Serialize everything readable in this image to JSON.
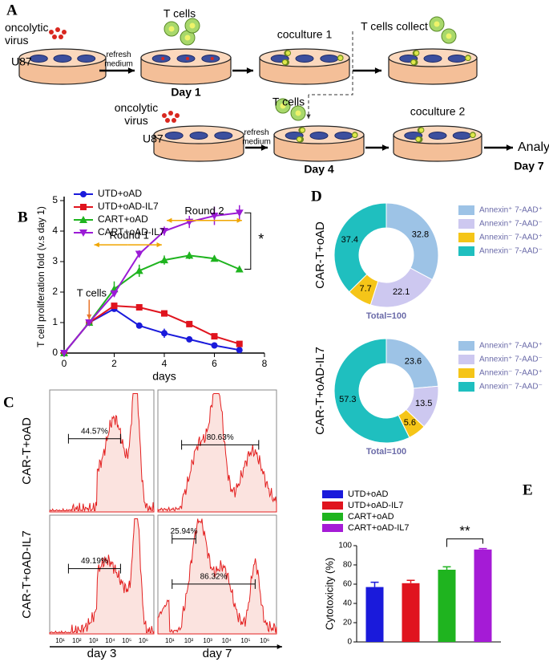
{
  "diagram": {
    "panel": "A",
    "labels": [
      "oncolytic virus",
      "U87",
      "refresh medium",
      "T cells",
      "Day 1",
      "coculture 1",
      "T cells collect",
      "oncolytic virus",
      "U87",
      "refresh medium",
      "T cells",
      "Day 4",
      "coculture 2",
      "Analysis",
      "Day 7"
    ]
  },
  "chart_data": [
    {
      "type": "line",
      "panel": "B",
      "ylabel": "T cell proliferation fold (v.s day 1)",
      "xlabel": "days",
      "x": [
        0,
        1,
        2,
        3,
        4,
        5,
        6,
        7
      ],
      "xlim": [
        0,
        8
      ],
      "xticks": [
        0,
        2,
        4,
        6,
        8
      ],
      "ylim": [
        0,
        5
      ],
      "yticks": [
        0,
        1,
        2,
        3,
        4,
        5
      ],
      "series": [
        {
          "name": "UTD+oAD",
          "color": "#1a1adb",
          "marker": "circle",
          "values": [
            0,
            1,
            1.45,
            0.9,
            0.65,
            0.45,
            0.25,
            0.1
          ],
          "errors": [
            0,
            0.05,
            0.08,
            0.08,
            0.15,
            0.05,
            0.05,
            0.05
          ]
        },
        {
          "name": "UTD+oAD-IL7",
          "color": "#e0141e",
          "marker": "square",
          "values": [
            0,
            1,
            1.55,
            1.5,
            1.3,
            0.95,
            0.55,
            0.3
          ],
          "errors": [
            0,
            0.05,
            0.08,
            0.05,
            0.05,
            0.05,
            0.05,
            0.05
          ]
        },
        {
          "name": "CART+oAD",
          "color": "#1fb41f",
          "marker": "triangle",
          "values": [
            0,
            1,
            2.1,
            2.7,
            3.05,
            3.2,
            3.1,
            2.75
          ],
          "errors": [
            0,
            0.05,
            0.25,
            0.2,
            0.15,
            0.12,
            0.1,
            0.08
          ]
        },
        {
          "name": "CART+oAD-IL7",
          "color": "#9b1bd6",
          "marker": "triangle-down",
          "values": [
            0,
            1,
            1.95,
            3.25,
            4.0,
            4.3,
            4.5,
            4.6
          ],
          "errors": [
            0,
            0.05,
            0.1,
            0.12,
            0.15,
            0.2,
            0.3,
            0.25
          ]
        }
      ],
      "annotations": [
        "Round 1",
        "Round 2",
        "T cells",
        "*"
      ]
    },
    {
      "type": "pie",
      "panel": "D",
      "title": "CAR-T+oAD",
      "total_label": "Total=100",
      "categories": [
        "Annexin⁺ 7-AAD⁺",
        "Annexin⁺ 7-AAD⁻",
        "Annexin⁻ 7-AAD⁺",
        "Annexin⁻ 7-AAD⁻"
      ],
      "colors": [
        "#9dc3e6",
        "#cdc8f0",
        "#f5c518",
        "#1fbfbf"
      ],
      "values": [
        32.8,
        22.1,
        7.7,
        37.4
      ]
    },
    {
      "type": "pie",
      "title": "CAR-T+oAD-IL7",
      "total_label": "Total=100",
      "categories": [
        "Annexin⁺ 7-AAD⁺",
        "Annexin⁺ 7-AAD⁻",
        "Annexin⁻ 7-AAD⁺",
        "Annexin⁻ 7-AAD⁻"
      ],
      "colors": [
        "#9dc3e6",
        "#cdc8f0",
        "#f5c518",
        "#1fbfbf"
      ],
      "values": [
        23.6,
        13.5,
        5.6,
        57.3
      ]
    },
    {
      "type": "bar",
      "panel": "E",
      "ylabel": "Cytotoxicity (%)",
      "categories": [
        "UTD+oAD",
        "UTD+oAD-IL7",
        "CART+oAD",
        "CART+oAD-IL7"
      ],
      "colors": [
        "#1a1adb",
        "#e0141e",
        "#1fb41f",
        "#a51bd6"
      ],
      "values": [
        57,
        61,
        75,
        96
      ],
      "errors": [
        5,
        3,
        3,
        1
      ],
      "ylim": [
        0,
        100
      ],
      "yticks": [
        0,
        20,
        40,
        60,
        80,
        100
      ],
      "annotation": "**"
    }
  ],
  "flow": {
    "panel": "C",
    "rows": [
      "CAR-T+oAD",
      "CAR-T+oAD-IL7"
    ],
    "columns": [
      "day 3",
      "day 7"
    ],
    "gates": [
      [
        "44.57%"
      ],
      [
        "80.63%"
      ],
      [
        "49.19%"
      ],
      [
        "25.94%",
        "86.32%"
      ]
    ],
    "xticks": [
      "10¹",
      "10²",
      "10³",
      "10⁴",
      "10⁵",
      "10⁶"
    ]
  }
}
